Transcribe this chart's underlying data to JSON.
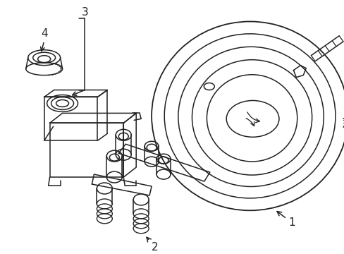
{
  "background_color": "#ffffff",
  "line_color": "#222222",
  "line_width": 1.1,
  "figsize": [
    4.89,
    3.6
  ],
  "dpi": 100
}
